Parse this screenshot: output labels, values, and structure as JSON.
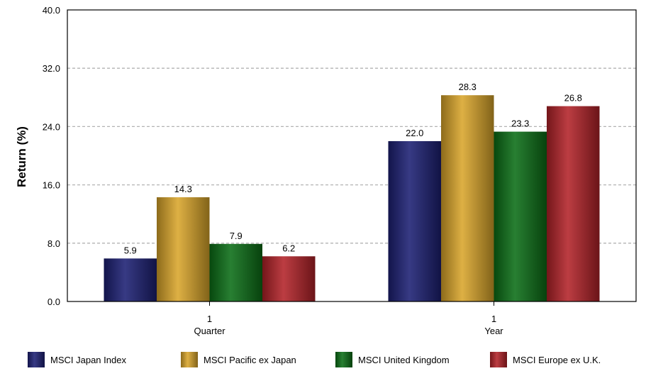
{
  "chart_data": {
    "type": "bar",
    "ylabel": "Return (%)",
    "ylim": [
      0,
      40
    ],
    "yticks": [
      "0.0",
      "8.0",
      "16.0",
      "24.0",
      "32.0",
      "40.0"
    ],
    "ytick_values": [
      0,
      8,
      16,
      24,
      32,
      40
    ],
    "grid": true,
    "legend_position": "bottom",
    "categories": [
      {
        "line1": "1",
        "line2": "Quarter"
      },
      {
        "line1": "1",
        "line2": "Year"
      }
    ],
    "series": [
      {
        "name": "MSCI Japan Index",
        "color": "#1c1f73",
        "values": [
          5.9,
          22.0
        ],
        "labels": [
          "5.9",
          "22.0"
        ]
      },
      {
        "name": "MSCI Pacific ex Japan",
        "color": "#d9a52a",
        "values": [
          14.3,
          28.3
        ],
        "labels": [
          "14.3",
          "28.3"
        ]
      },
      {
        "name": "MSCI United Kingdom",
        "color": "#0b6e16",
        "values": [
          7.9,
          23.3
        ],
        "labels": [
          "7.9",
          "23.3"
        ]
      },
      {
        "name": "MSCI Europe ex U.K.",
        "color": "#b32228",
        "values": [
          6.2,
          26.8
        ],
        "labels": [
          "6.2",
          "26.8"
        ]
      }
    ]
  }
}
